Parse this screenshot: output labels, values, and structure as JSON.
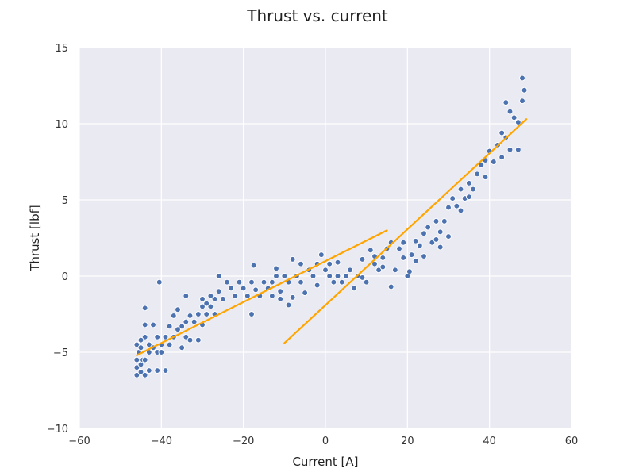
{
  "chart_data": {
    "type": "scatter",
    "title": "Thrust vs. current",
    "xlabel": "Current [A]",
    "ylabel": "Thrust [lbf]",
    "xlim": [
      -60,
      60
    ],
    "ylim": [
      -10,
      15
    ],
    "x_ticks": [
      -60,
      -40,
      -20,
      0,
      20,
      40,
      60
    ],
    "y_ticks": [
      -10,
      -5,
      0,
      5,
      10,
      15
    ],
    "x_tick_labels": [
      "−60",
      "−40",
      "−20",
      "0",
      "20",
      "40",
      "60"
    ],
    "y_tick_labels": [
      "−10",
      "−5",
      "0",
      "5",
      "10",
      "15"
    ],
    "grid": true,
    "background": "#EAEAF2",
    "grid_color": "#FFFFFF",
    "point_color": "#4C72B0",
    "line_color": "#FFA500",
    "series": [
      {
        "type": "scatter",
        "points": [
          [
            -46,
            -6.5
          ],
          [
            -45,
            -6.3
          ],
          [
            -44,
            -6.5
          ],
          [
            -46,
            -6.0
          ],
          [
            -45,
            -5.8
          ],
          [
            -44.5,
            -5.5
          ],
          [
            -46,
            -5.5
          ],
          [
            -45.5,
            -5.0
          ],
          [
            -44,
            -5.5
          ],
          [
            -43,
            -5.0
          ],
          [
            -46,
            -4.5
          ],
          [
            -45,
            -4.7
          ],
          [
            -44,
            -4.0
          ],
          [
            -43,
            -4.5
          ],
          [
            -42,
            -4.7
          ],
          [
            -41,
            -5.0
          ],
          [
            -40,
            -4.5
          ],
          [
            -45,
            -4.2
          ],
          [
            -44,
            -3.2
          ],
          [
            -44,
            -2.1
          ],
          [
            -42,
            -3.2
          ],
          [
            -41,
            -4.0
          ],
          [
            -40,
            -5.0
          ],
          [
            -39,
            -4.0
          ],
          [
            -38,
            -4.5
          ],
          [
            -37,
            -4.0
          ],
          [
            -39,
            -6.2
          ],
          [
            -41,
            -6.2
          ],
          [
            -43,
            -6.2
          ],
          [
            -40.5,
            -0.4
          ],
          [
            -38,
            -3.3
          ],
          [
            -37,
            -2.6
          ],
          [
            -36,
            -3.5
          ],
          [
            -35,
            -4.7
          ],
          [
            -34,
            -4.0
          ],
          [
            -36,
            -2.2
          ],
          [
            -35,
            -3.3
          ],
          [
            -34,
            -3.0
          ],
          [
            -33,
            -2.6
          ],
          [
            -34,
            -1.3
          ],
          [
            -32,
            -3.0
          ],
          [
            -31,
            -2.5
          ],
          [
            -30,
            -2.0
          ],
          [
            -29,
            -2.5
          ],
          [
            -28,
            -2.0
          ],
          [
            -27,
            -1.5
          ],
          [
            -30,
            -1.5
          ],
          [
            -33,
            -4.2
          ],
          [
            -31,
            -4.2
          ],
          [
            -30,
            -3.2
          ],
          [
            -29,
            -1.8
          ],
          [
            -28,
            -1.3
          ],
          [
            -27,
            -2.5
          ],
          [
            -26,
            -1.0
          ],
          [
            -25,
            -1.5
          ],
          [
            -24,
            -0.4
          ],
          [
            -26,
            0.0
          ],
          [
            -23,
            -0.8
          ],
          [
            -22,
            -1.3
          ],
          [
            -21,
            -0.4
          ],
          [
            -20,
            -0.8
          ],
          [
            -19,
            -1.3
          ],
          [
            -18,
            -0.4
          ],
          [
            -17,
            -0.9
          ],
          [
            -16,
            -1.3
          ],
          [
            -15,
            -0.4
          ],
          [
            -14,
            -0.8
          ],
          [
            -13,
            -0.4
          ],
          [
            -12,
            0.0
          ],
          [
            -11,
            -1.0
          ],
          [
            -18,
            -2.5
          ],
          [
            -17.5,
            0.7
          ],
          [
            -13,
            -1.3
          ],
          [
            -11,
            -1.5
          ],
          [
            -10,
            0.0
          ],
          [
            -9,
            -0.4
          ],
          [
            -8,
            -1.4
          ],
          [
            -7,
            0.0
          ],
          [
            -6,
            -0.4
          ],
          [
            -5,
            -1.1
          ],
          [
            -4,
            0.4
          ],
          [
            -3,
            0.0
          ],
          [
            -2,
            0.8
          ],
          [
            -1,
            1.4
          ],
          [
            0,
            0.4
          ],
          [
            1,
            0.8
          ],
          [
            2,
            -0.4
          ],
          [
            3,
            0.0
          ],
          [
            4,
            -0.4
          ],
          [
            5,
            0.0
          ],
          [
            -8,
            1.1
          ],
          [
            -6,
            0.8
          ],
          [
            -9,
            -1.9
          ],
          [
            -12,
            0.5
          ],
          [
            -2,
            -0.6
          ],
          [
            3,
            0.9
          ],
          [
            6,
            0.4
          ],
          [
            7,
            -0.8
          ],
          [
            8,
            0.0
          ],
          [
            9,
            1.1
          ],
          [
            10,
            -0.4
          ],
          [
            11,
            1.7
          ],
          [
            12,
            0.8
          ],
          [
            13,
            0.4
          ],
          [
            14,
            1.2
          ],
          [
            15,
            1.8
          ],
          [
            16,
            2.2
          ],
          [
            17,
            0.4
          ],
          [
            18,
            1.8
          ],
          [
            19,
            2.2
          ],
          [
            20,
            0.0
          ],
          [
            21,
            1.4
          ],
          [
            22,
            2.3
          ],
          [
            23,
            2.0
          ],
          [
            24,
            2.8
          ],
          [
            25,
            3.2
          ],
          [
            26,
            2.2
          ],
          [
            27,
            3.6
          ],
          [
            28,
            1.9
          ],
          [
            29,
            3.6
          ],
          [
            30,
            4.5
          ],
          [
            31,
            5.1
          ],
          [
            32,
            4.6
          ],
          [
            33,
            5.7
          ],
          [
            34,
            5.1
          ],
          [
            35,
            6.1
          ],
          [
            36,
            5.7
          ],
          [
            37,
            6.7
          ],
          [
            38,
            7.3
          ],
          [
            39,
            7.6
          ],
          [
            30,
            2.6
          ],
          [
            28,
            2.9
          ],
          [
            20.5,
            0.3
          ],
          [
            16,
            -0.7
          ],
          [
            40,
            8.2
          ],
          [
            41,
            7.5
          ],
          [
            42,
            8.6
          ],
          [
            43,
            9.4
          ],
          [
            44,
            9.1
          ],
          [
            45,
            10.8
          ],
          [
            46,
            10.4
          ],
          [
            47,
            10.1
          ],
          [
            48,
            11.5
          ],
          [
            48.5,
            12.2
          ],
          [
            48,
            13.0
          ],
          [
            44,
            11.4
          ],
          [
            47,
            8.3
          ],
          [
            45,
            8.3
          ],
          [
            43,
            7.8
          ],
          [
            39,
            6.5
          ],
          [
            35,
            5.2
          ],
          [
            33,
            4.3
          ],
          [
            27,
            2.4
          ],
          [
            24,
            1.3
          ],
          [
            22,
            1.0
          ],
          [
            19,
            1.2
          ],
          [
            14,
            0.6
          ],
          [
            12,
            1.3
          ],
          [
            9,
            -0.1
          ],
          [
            1,
            0.0
          ]
        ]
      },
      {
        "type": "line",
        "segments": [
          [
            [
              -46,
              -5.2
            ],
            [
              15,
              3.0
            ]
          ],
          [
            [
              -10,
              -4.4
            ],
            [
              49,
              10.3
            ]
          ]
        ]
      }
    ]
  }
}
